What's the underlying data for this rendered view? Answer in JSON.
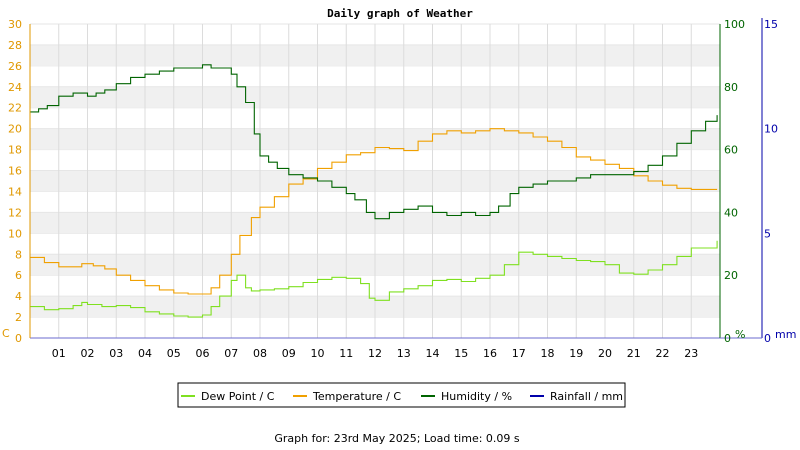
{
  "chart_data": {
    "type": "line",
    "title": "Daily graph of Weather",
    "footer": "Graph for: 23rd May 2025; Load time: 0.09 s",
    "x_ticks": [
      "01",
      "02",
      "03",
      "04",
      "05",
      "06",
      "07",
      "08",
      "09",
      "10",
      "11",
      "12",
      "13",
      "14",
      "15",
      "16",
      "17",
      "18",
      "19",
      "20",
      "21",
      "22",
      "23"
    ],
    "x_range": [
      0,
      24
    ],
    "axes": {
      "left": {
        "unit": "C",
        "range": [
          0,
          30
        ],
        "ticks": [
          "0",
          "2",
          "4",
          "6",
          "8",
          "10",
          "12",
          "14",
          "16",
          "18",
          "20",
          "22",
          "24",
          "26",
          "28",
          "30"
        ],
        "color": "#e09800"
      },
      "humidity": {
        "unit": "%",
        "range": [
          0,
          100
        ],
        "ticks": [
          "0",
          "20",
          "40",
          "60",
          "80",
          "100"
        ],
        "color": "#006400"
      },
      "rainfall": {
        "unit": "mm",
        "range": [
          0,
          15
        ],
        "ticks": [
          "0",
          "5",
          "10",
          "15"
        ],
        "color": "#0000aa"
      }
    },
    "grid": true,
    "legend_position": "bottom",
    "series": [
      {
        "name": "Dew Point / C",
        "color": "#7fe020",
        "axis": "left",
        "x": [
          0,
          0.5,
          1,
          1.5,
          1.8,
          2,
          2.5,
          3,
          3.5,
          4,
          4.5,
          5,
          5.5,
          6,
          6.3,
          6.6,
          7,
          7.2,
          7.5,
          7.7,
          8,
          8.5,
          9,
          9.5,
          10,
          10.5,
          11,
          11.5,
          11.8,
          12,
          12.5,
          13,
          13.5,
          14,
          14.5,
          15,
          15.5,
          16,
          16.5,
          17,
          17.5,
          18,
          18.5,
          19,
          19.5,
          20,
          20.5,
          21,
          21.5,
          22,
          22.5,
          23,
          23.9
        ],
        "y": [
          3.0,
          2.7,
          2.8,
          3.1,
          3.4,
          3.2,
          3.0,
          3.1,
          2.9,
          2.5,
          2.3,
          2.1,
          2.0,
          2.2,
          3.0,
          4.0,
          5.5,
          6.0,
          4.8,
          4.5,
          4.6,
          4.7,
          4.9,
          5.3,
          5.6,
          5.8,
          5.7,
          5.2,
          3.8,
          3.6,
          4.4,
          4.7,
          5.0,
          5.5,
          5.6,
          5.4,
          5.7,
          6.0,
          7.0,
          8.2,
          8.0,
          7.8,
          7.6,
          7.4,
          7.3,
          7.0,
          6.2,
          6.1,
          6.5,
          7.0,
          7.8,
          8.6,
          9.3
        ]
      },
      {
        "name": "Temperature / C",
        "color": "#f0a000",
        "axis": "left",
        "x": [
          0,
          0.5,
          1,
          1.5,
          1.8,
          2.2,
          2.6,
          3,
          3.5,
          4,
          4.5,
          5,
          5.5,
          6,
          6.3,
          6.6,
          7,
          7.3,
          7.7,
          8,
          8.5,
          9,
          9.5,
          10,
          10.5,
          11,
          11.5,
          12,
          12.5,
          13,
          13.5,
          14,
          14.5,
          15,
          15.5,
          16,
          16.5,
          17,
          17.5,
          18,
          18.5,
          19,
          19.5,
          20,
          20.5,
          21,
          21.5,
          22,
          22.5,
          23,
          23.9
        ],
        "y": [
          7.7,
          7.2,
          6.8,
          6.8,
          7.1,
          6.9,
          6.6,
          6.0,
          5.5,
          5.0,
          4.6,
          4.3,
          4.2,
          4.2,
          4.8,
          6.0,
          8.0,
          9.8,
          11.5,
          12.5,
          13.5,
          14.7,
          15.2,
          16.2,
          16.8,
          17.5,
          17.7,
          18.2,
          18.1,
          17.9,
          18.8,
          19.5,
          19.8,
          19.6,
          19.8,
          20.0,
          19.8,
          19.6,
          19.2,
          18.8,
          18.2,
          17.3,
          17.0,
          16.6,
          16.2,
          15.5,
          15.0,
          14.6,
          14.3,
          14.2,
          14.2
        ]
      },
      {
        "name": "Humidity / %",
        "color": "#006400",
        "axis": "humidity",
        "x": [
          0,
          0.3,
          0.6,
          1,
          1.5,
          2,
          2.3,
          2.6,
          3,
          3.5,
          4,
          4.5,
          5,
          5.5,
          6,
          6.3,
          6.6,
          7,
          7.2,
          7.5,
          7.8,
          8,
          8.3,
          8.6,
          9,
          9.5,
          10,
          10.5,
          11,
          11.3,
          11.7,
          12,
          12.5,
          13,
          13.5,
          14,
          14.5,
          15,
          15.5,
          16,
          16.3,
          16.7,
          17,
          17.5,
          18,
          18.5,
          19,
          19.5,
          20,
          20.5,
          20.8,
          21,
          21.5,
          22,
          22.5,
          23,
          23.5,
          23.9
        ],
        "y": [
          72,
          73,
          74,
          77,
          78,
          77,
          78,
          79,
          81,
          83,
          84,
          85,
          86,
          86,
          87,
          86,
          86,
          84,
          80,
          75,
          65,
          58,
          56,
          54,
          52,
          51,
          50,
          48,
          46,
          44,
          40,
          38,
          40,
          41,
          42,
          40,
          39,
          40,
          39,
          40,
          42,
          46,
          48,
          49,
          50,
          50,
          51,
          52,
          52,
          52,
          52,
          53,
          55,
          58,
          62,
          66,
          69,
          71
        ]
      },
      {
        "name": "Rainfall / mm",
        "color": "#0000aa",
        "axis": "rainfall",
        "x": [
          0,
          23.9
        ],
        "y": [
          0,
          0
        ]
      }
    ]
  }
}
